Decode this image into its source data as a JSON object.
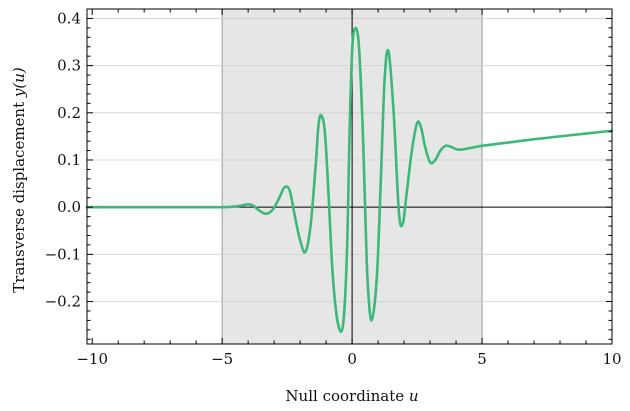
{
  "chart_data": {
    "type": "line",
    "title": "",
    "xlabel": "Null coordinate",
    "xlabel_var": "u",
    "ylabel": "Transverse displacement",
    "ylabel_var": "y(u)",
    "xlim": [
      -10.2,
      10
    ],
    "ylim": [
      -0.29,
      0.42
    ],
    "x_ticks": [
      -10,
      -5,
      0,
      5,
      10
    ],
    "x_tick_labels": [
      "−10",
      "−5",
      "0",
      "5",
      "10"
    ],
    "y_ticks": [
      -0.2,
      -0.1,
      0.0,
      0.1,
      0.2,
      0.3,
      0.4
    ],
    "y_tick_labels": [
      "−0.2",
      "−0.1",
      "0.0",
      "0.1",
      "0.2",
      "0.3",
      "0.4"
    ],
    "grid": "horizontal",
    "shaded_region": {
      "x_from": -5,
      "x_to": 5,
      "color": "#e6e6e6"
    },
    "reference_lines": {
      "x": 0,
      "y": 0
    },
    "series": [
      {
        "color": "#3cb878",
        "x": [
          -10.2,
          -9,
          -8,
          -7,
          -6,
          -5,
          -4.6,
          -4.3,
          -4.0,
          -3.8,
          -3.55,
          -3.3,
          -3.05,
          -2.8,
          -2.6,
          -2.4,
          -2.2,
          -2.0,
          -1.8,
          -1.6,
          -1.4,
          -1.3,
          -1.2,
          -1.05,
          -0.9,
          -0.75,
          -0.55,
          -0.35,
          -0.2,
          -0.1,
          0.0,
          0.1,
          0.25,
          0.4,
          0.5,
          0.6,
          0.75,
          0.95,
          1.1,
          1.25,
          1.4,
          1.6,
          1.8,
          1.95,
          2.1,
          2.3,
          2.5,
          2.65,
          2.8,
          3.0,
          3.2,
          3.4,
          3.6,
          3.8,
          4.0,
          4.2,
          4.5,
          4.8,
          5.0,
          6.0,
          7.0,
          8.0,
          9.0,
          10.0
        ],
        "y": [
          0.0,
          0.0,
          0.0,
          0.0,
          0.0,
          0.0,
          0.001,
          0.003,
          0.006,
          0.003,
          -0.008,
          -0.014,
          -0.005,
          0.02,
          0.042,
          0.035,
          -0.02,
          -0.07,
          -0.095,
          -0.04,
          0.09,
          0.17,
          0.195,
          0.16,
          0.02,
          -0.14,
          -0.245,
          -0.25,
          -0.1,
          0.15,
          0.33,
          0.378,
          0.35,
          0.18,
          0.0,
          -0.16,
          -0.24,
          -0.15,
          0.05,
          0.27,
          0.33,
          0.2,
          -0.01,
          -0.035,
          0.03,
          0.12,
          0.178,
          0.17,
          0.13,
          0.095,
          0.1,
          0.12,
          0.13,
          0.128,
          0.123,
          0.122,
          0.125,
          0.128,
          0.13,
          0.137,
          0.144,
          0.15,
          0.156,
          0.162
        ]
      }
    ]
  }
}
